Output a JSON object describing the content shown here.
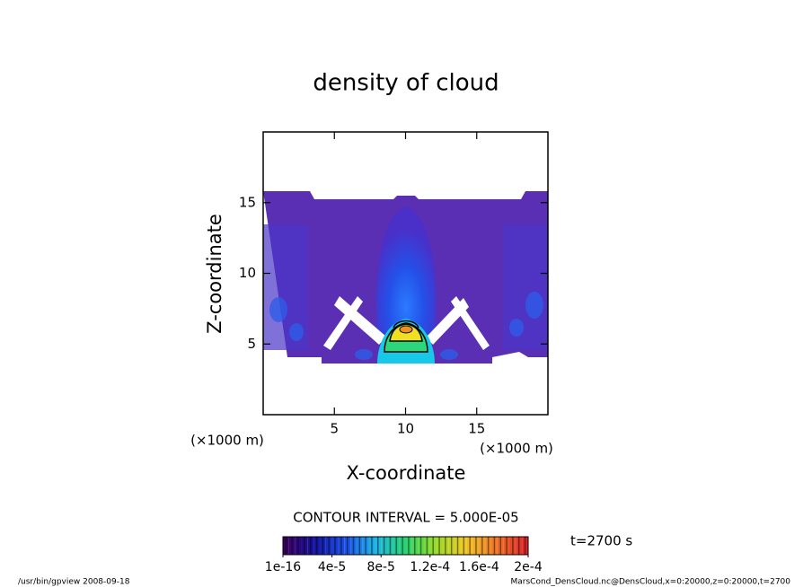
{
  "chart_data": {
    "type": "contour",
    "title": "density of cloud",
    "x_label": "X-coordinate",
    "y_label": "Z-coordinate",
    "x_unit": "(×1000 m)",
    "y_unit": "(×1000 m)",
    "xlim": [
      0,
      20
    ],
    "ylim": [
      0,
      20
    ],
    "xticks": [
      5,
      10,
      15
    ],
    "yticks": [
      5,
      10,
      15
    ],
    "contour_interval": "CONTOUR INTERVAL = 5.000E-05",
    "colorbar": {
      "lim": [
        1e-16,
        0.0002
      ],
      "ticks": [
        {
          "value": 1e-16,
          "label": "1e-16"
        },
        {
          "value": 4e-05,
          "label": "4e-5"
        },
        {
          "value": 8e-05,
          "label": "8e-5"
        },
        {
          "value": 0.00012,
          "label": "1.2e-4"
        },
        {
          "value": 0.00016,
          "label": "1.6e-4"
        },
        {
          "value": 0.0002,
          "label": "2e-4"
        }
      ]
    },
    "time_label": "t=2700 s",
    "footer_left": "/usr/bin/gpview   2008-09-18",
    "footer_right": "MarsCond_DensCloud.nc@DensCloud,x=0:20000,z=0:20000,t=2700"
  }
}
